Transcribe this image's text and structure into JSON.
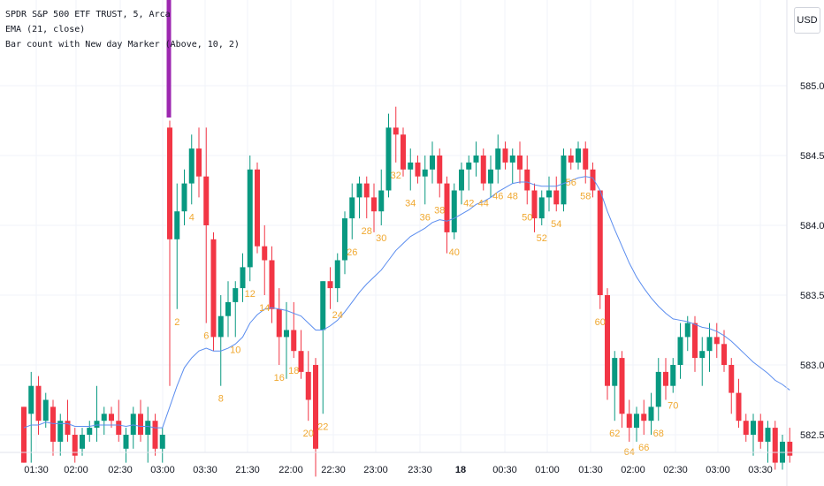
{
  "legend": {
    "symbol": "SPDR S&P 500 ETF TRUST, 5, Arca",
    "ema": "EMA (21, close)",
    "indicator": "Bar count with New day Marker (Above, 10, 2)"
  },
  "currency_button": "USD",
  "chart_data": {
    "type": "candlestick",
    "symbol": "SPDR S&P 500 ETF TRUST",
    "interval": "5",
    "exchange": "Arca",
    "currency": "USD",
    "y_ticks": [
      "585.00",
      "584.50",
      "584.00",
      "583.50",
      "583.00",
      "582.50"
    ],
    "x_ticks": [
      "01:30",
      "02:00",
      "02:30",
      "03:00",
      "03:30",
      "21:30",
      "22:00",
      "22:30",
      "23:00",
      "23:30",
      "18",
      "00:30",
      "01:00",
      "01:30",
      "02:00",
      "02:30",
      "03:00",
      "03:30"
    ],
    "ylim": [
      582.4,
      585.6
    ],
    "grid": true,
    "colors": {
      "up": "#089981",
      "down": "#f23645",
      "ema": "#5b8def",
      "bar_count": "#f0a830",
      "new_day": "#9c27b0",
      "grid": "#f0f3fa"
    },
    "candles": [
      [
        582.7,
        582.7,
        582.3,
        582.3
      ],
      [
        582.65,
        582.95,
        582.3,
        582.85
      ],
      [
        582.85,
        582.92,
        582.5,
        582.6
      ],
      [
        582.6,
        582.8,
        582.55,
        582.75
      ],
      [
        582.7,
        582.75,
        582.35,
        582.45
      ],
      [
        582.45,
        582.65,
        582.35,
        582.6
      ],
      [
        582.6,
        582.75,
        582.45,
        582.5
      ],
      [
        582.5,
        582.55,
        582.3,
        582.35
      ],
      [
        582.4,
        582.55,
        582.35,
        582.5
      ],
      [
        582.5,
        582.6,
        582.45,
        582.55
      ],
      [
        582.55,
        582.85,
        582.45,
        582.6
      ],
      [
        582.6,
        582.7,
        582.5,
        582.65
      ],
      [
        582.65,
        582.7,
        582.55,
        582.6
      ],
      [
        582.6,
        582.75,
        582.45,
        582.5
      ],
      [
        582.4,
        582.55,
        582.3,
        582.5
      ],
      [
        582.5,
        582.7,
        582.4,
        582.65
      ],
      [
        582.65,
        582.75,
        582.45,
        582.5
      ],
      [
        582.5,
        582.7,
        582.3,
        582.6
      ],
      [
        582.6,
        582.65,
        582.35,
        582.4
      ],
      [
        582.4,
        582.55,
        582.3,
        582.5
      ],
      [
        584.7,
        584.75,
        582.85,
        583.9
      ],
      [
        583.9,
        584.3,
        583.4,
        584.1
      ],
      [
        584.1,
        584.4,
        584.0,
        584.3
      ],
      [
        584.3,
        584.65,
        584.15,
        584.55
      ],
      [
        584.55,
        584.7,
        584.2,
        584.35
      ],
      [
        584.35,
        584.7,
        583.3,
        584.0
      ],
      [
        583.9,
        583.95,
        583.1,
        583.2
      ],
      [
        583.2,
        583.5,
        582.85,
        583.35
      ],
      [
        583.35,
        583.6,
        583.2,
        583.45
      ],
      [
        583.45,
        583.6,
        583.2,
        583.55
      ],
      [
        583.55,
        583.8,
        583.45,
        583.7
      ],
      [
        583.7,
        584.5,
        583.6,
        584.4
      ],
      [
        584.4,
        584.45,
        583.8,
        583.85
      ],
      [
        583.85,
        584.0,
        583.5,
        583.75
      ],
      [
        583.75,
        583.85,
        583.3,
        583.4
      ],
      [
        583.4,
        583.55,
        583.0,
        583.2
      ],
      [
        583.2,
        583.45,
        582.9,
        583.25
      ],
      [
        583.25,
        583.45,
        583.05,
        583.1
      ],
      [
        583.1,
        583.25,
        582.9,
        582.95
      ],
      [
        582.95,
        583.1,
        582.6,
        582.75
      ],
      [
        583.0,
        583.05,
        582.2,
        582.4
      ],
      [
        583.25,
        583.6,
        582.65,
        583.6
      ],
      [
        583.6,
        583.7,
        583.4,
        583.55
      ],
      [
        583.55,
        583.8,
        583.45,
        583.75
      ],
      [
        583.75,
        584.1,
        583.65,
        584.05
      ],
      [
        584.05,
        584.3,
        583.9,
        584.2
      ],
      [
        584.2,
        584.35,
        584.05,
        584.3
      ],
      [
        584.3,
        584.35,
        584.05,
        584.2
      ],
      [
        584.2,
        584.3,
        583.95,
        584.1
      ],
      [
        584.1,
        584.4,
        584.0,
        584.25
      ],
      [
        584.25,
        584.8,
        584.2,
        584.7
      ],
      [
        584.7,
        584.85,
        584.45,
        584.65
      ],
      [
        584.65,
        584.7,
        584.35,
        584.4
      ],
      [
        584.4,
        584.55,
        584.25,
        584.45
      ],
      [
        584.45,
        584.5,
        584.3,
        584.35
      ],
      [
        584.35,
        584.5,
        584.15,
        584.4
      ],
      [
        584.4,
        584.6,
        584.3,
        584.5
      ],
      [
        584.5,
        584.55,
        584.2,
        584.3
      ],
      [
        584.3,
        584.35,
        583.8,
        583.95
      ],
      [
        583.95,
        584.3,
        583.9,
        584.25
      ],
      [
        584.25,
        584.45,
        584.15,
        584.4
      ],
      [
        584.4,
        584.5,
        584.25,
        584.45
      ],
      [
        584.45,
        584.6,
        584.35,
        584.5
      ],
      [
        584.5,
        584.55,
        584.25,
        584.3
      ],
      [
        584.3,
        584.5,
        584.2,
        584.4
      ],
      [
        584.4,
        584.65,
        584.3,
        584.55
      ],
      [
        584.55,
        584.6,
        584.4,
        584.45
      ],
      [
        584.45,
        584.55,
        584.3,
        584.5
      ],
      [
        584.5,
        584.6,
        584.3,
        584.4
      ],
      [
        584.4,
        584.5,
        584.15,
        584.25
      ],
      [
        584.25,
        584.3,
        583.95,
        584.05
      ],
      [
        584.05,
        584.25,
        584.0,
        584.2
      ],
      [
        584.2,
        584.35,
        584.1,
        584.25
      ],
      [
        584.25,
        584.35,
        584.1,
        584.15
      ],
      [
        584.15,
        584.55,
        584.1,
        584.5
      ],
      [
        584.5,
        584.55,
        584.4,
        584.45
      ],
      [
        584.45,
        584.6,
        584.4,
        584.55
      ],
      [
        584.55,
        584.6,
        584.3,
        584.4
      ],
      [
        584.4,
        584.45,
        584.2,
        584.25
      ],
      [
        584.25,
        584.25,
        583.4,
        583.5
      ],
      [
        583.5,
        583.55,
        582.75,
        582.85
      ],
      [
        582.85,
        583.1,
        582.6,
        583.05
      ],
      [
        583.05,
        583.1,
        582.55,
        582.65
      ],
      [
        582.65,
        582.75,
        582.45,
        582.55
      ],
      [
        582.55,
        582.7,
        582.45,
        582.65
      ],
      [
        582.65,
        582.75,
        582.5,
        582.6
      ],
      [
        582.6,
        582.8,
        582.5,
        582.7
      ],
      [
        582.7,
        583.05,
        582.6,
        582.95
      ],
      [
        582.95,
        583.05,
        582.75,
        582.85
      ],
      [
        582.85,
        583.05,
        582.8,
        583.0
      ],
      [
        583.0,
        583.3,
        582.9,
        583.2
      ],
      [
        583.2,
        583.35,
        583.1,
        583.3
      ],
      [
        583.3,
        583.35,
        582.95,
        583.05
      ],
      [
        583.05,
        583.2,
        582.85,
        583.1
      ],
      [
        583.1,
        583.3,
        582.95,
        583.2
      ],
      [
        583.2,
        583.3,
        583.05,
        583.15
      ],
      [
        583.15,
        583.25,
        582.95,
        583.0
      ],
      [
        583.0,
        583.05,
        582.65,
        582.8
      ],
      [
        582.8,
        582.9,
        582.55,
        582.6
      ],
      [
        582.6,
        582.65,
        582.45,
        582.5
      ],
      [
        582.5,
        582.65,
        582.35,
        582.6
      ],
      [
        582.6,
        582.65,
        582.4,
        582.45
      ],
      [
        582.45,
        582.6,
        582.3,
        582.55
      ],
      [
        582.55,
        582.6,
        582.25,
        582.3
      ],
      [
        582.3,
        582.5,
        582.25,
        582.45
      ],
      [
        582.45,
        582.55,
        582.3,
        582.35
      ]
    ],
    "ema": [
      582.55,
      582.57,
      582.57,
      582.59,
      582.58,
      582.58,
      582.58,
      582.56,
      582.56,
      582.56,
      582.57,
      582.57,
      582.57,
      582.57,
      582.56,
      582.57,
      582.56,
      582.56,
      582.55,
      582.55,
      582.7,
      582.85,
      582.98,
      583.05,
      583.1,
      583.12,
      583.1,
      583.1,
      583.12,
      583.15,
      583.2,
      583.3,
      583.36,
      583.4,
      583.41,
      583.4,
      583.39,
      583.37,
      583.35,
      583.3,
      583.25,
      583.25,
      583.28,
      583.32,
      583.38,
      583.45,
      583.52,
      583.58,
      583.63,
      583.68,
      583.75,
      583.82,
      583.87,
      583.92,
      583.95,
      583.98,
      584.02,
      584.04,
      584.03,
      584.05,
      584.08,
      584.11,
      584.15,
      584.17,
      584.2,
      584.24,
      584.27,
      584.3,
      584.31,
      584.31,
      584.29,
      584.28,
      584.28,
      584.28,
      584.3,
      584.32,
      584.34,
      584.35,
      584.34,
      584.25,
      584.1,
      583.97,
      583.85,
      583.73,
      583.63,
      583.55,
      583.48,
      583.42,
      583.37,
      583.33,
      583.32,
      583.31,
      583.29,
      583.27,
      583.26,
      583.24,
      583.21,
      583.17,
      583.12,
      583.07,
      583.02,
      582.98,
      582.94,
      582.89,
      582.86,
      582.82
    ],
    "bar_count_labels": [
      {
        "bar": 21,
        "text": "2"
      },
      {
        "bar": 23,
        "text": "4"
      },
      {
        "bar": 25,
        "text": "6"
      },
      {
        "bar": 27,
        "text": "8"
      },
      {
        "bar": 29,
        "text": "10"
      },
      {
        "bar": 31,
        "text": "12"
      },
      {
        "bar": 33,
        "text": "14"
      },
      {
        "bar": 35,
        "text": "16"
      },
      {
        "bar": 37,
        "text": "18"
      },
      {
        "bar": 39,
        "text": "20"
      },
      {
        "bar": 41,
        "text": "22"
      },
      {
        "bar": 43,
        "text": "24"
      },
      {
        "bar": 45,
        "text": "26"
      },
      {
        "bar": 47,
        "text": "28"
      },
      {
        "bar": 49,
        "text": "30"
      },
      {
        "bar": 51,
        "text": "32"
      },
      {
        "bar": 53,
        "text": "34"
      },
      {
        "bar": 55,
        "text": "36"
      },
      {
        "bar": 57,
        "text": "38"
      },
      {
        "bar": 59,
        "text": "40"
      },
      {
        "bar": 61,
        "text": "42"
      },
      {
        "bar": 63,
        "text": "44"
      },
      {
        "bar": 65,
        "text": "46"
      },
      {
        "bar": 67,
        "text": "48"
      },
      {
        "bar": 69,
        "text": "50"
      },
      {
        "bar": 71,
        "text": "52"
      },
      {
        "bar": 73,
        "text": "54"
      },
      {
        "bar": 75,
        "text": "56"
      },
      {
        "bar": 77,
        "text": "58"
      },
      {
        "bar": 79,
        "text": "60"
      },
      {
        "bar": 81,
        "text": "62"
      },
      {
        "bar": 83,
        "text": "64"
      },
      {
        "bar": 85,
        "text": "66"
      },
      {
        "bar": 87,
        "text": "68"
      },
      {
        "bar": 89,
        "text": "70"
      }
    ],
    "new_day_marker_bar": 20
  }
}
